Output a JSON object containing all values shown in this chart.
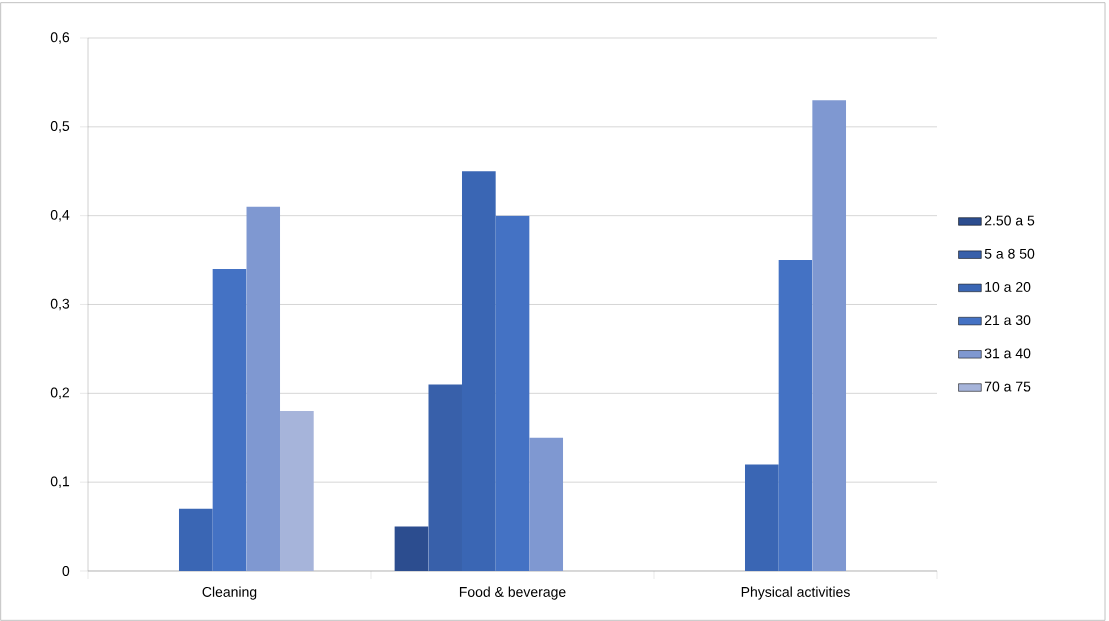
{
  "chart_data": {
    "type": "bar",
    "categories": [
      "Cleaning",
      "Food & beverage",
      "Physical activities"
    ],
    "series": [
      {
        "name": "2.50 a 5",
        "color": "#2c4d8f",
        "values": [
          null,
          0.05,
          null
        ]
      },
      {
        "name": "5 a 8 50",
        "color": "#3860aa",
        "values": [
          null,
          0.21,
          null
        ]
      },
      {
        "name": "10 a 20",
        "color": "#3a66b4",
        "values": [
          0.07,
          0.45,
          0.12
        ]
      },
      {
        "name": "21 a 30",
        "color": "#4472c4",
        "values": [
          0.34,
          0.4,
          0.35
        ]
      },
      {
        "name": "31 a 40",
        "color": "#7f98d1",
        "values": [
          0.41,
          0.15,
          0.53
        ]
      },
      {
        "name": "70 a 75",
        "color": "#a6b4da",
        "values": [
          0.18,
          null,
          null
        ]
      }
    ],
    "ylim": [
      0,
      0.6
    ],
    "yticks": [
      0,
      {
        "value": 0.1,
        "label": "0,1"
      },
      {
        "value": 0.2,
        "label": "0,2"
      },
      {
        "value": 0.3,
        "label": "0,3"
      },
      {
        "value": 0.4,
        "label": "0,4"
      },
      {
        "value": 0.5,
        "label": "0,5"
      },
      {
        "value": 0.6,
        "label": "0,6"
      }
    ],
    "grid": "y",
    "legend": "right"
  }
}
